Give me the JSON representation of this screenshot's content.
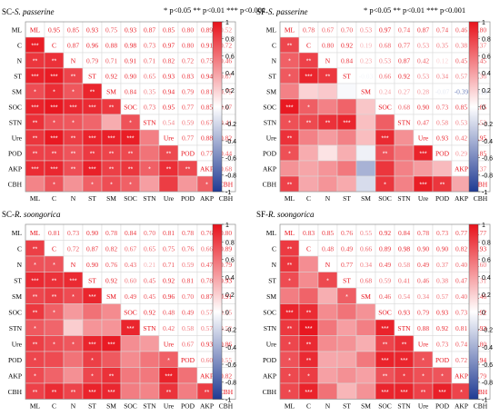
{
  "significance_notes": {
    "left": "* p<0.05  ** p<0.01  *** p<0.001",
    "right": "* p<0.05  ** p<0.01  *** p<0.001"
  },
  "colors": {
    "positive": "#e8121b",
    "negative": "#1f3a93",
    "zero": "#ffffff",
    "grid": "#d8d8d8"
  },
  "chart_data": [
    {
      "type": "heatmap",
      "panel": "SC-S. passerine",
      "title_prefix": "SC-",
      "title_species": "S. passerine",
      "variables": [
        "ML",
        "C",
        "N",
        "ST",
        "SM",
        "SOC",
        "STN",
        "Ure",
        "POD",
        "AKP",
        "CBH"
      ],
      "colorbar_ticks": [
        "1",
        "0.8",
        "0.6",
        "0.4",
        "0.2",
        "0",
        "-0.2",
        "-0.4",
        "-0.6",
        "-0.8",
        "-1"
      ],
      "clim": [
        -1,
        1
      ],
      "upper_values": [
        [
          null,
          0.95,
          0.85,
          0.93,
          0.75,
          0.93,
          0.87,
          0.85,
          0.8,
          0.89,
          0.52
        ],
        [
          null,
          null,
          0.87,
          0.96,
          0.88,
          0.98,
          0.73,
          0.97,
          0.8,
          0.91,
          0.72
        ],
        [
          null,
          null,
          null,
          0.79,
          0.71,
          0.91,
          0.71,
          0.82,
          0.72,
          0.75,
          0.46
        ],
        [
          null,
          null,
          null,
          null,
          0.92,
          0.9,
          0.65,
          0.93,
          0.83,
          0.94,
          0.67
        ],
        [
          null,
          null,
          null,
          null,
          null,
          0.84,
          0.35,
          0.94,
          0.79,
          0.81,
          0.75
        ],
        [
          null,
          null,
          null,
          null,
          null,
          null,
          0.73,
          0.95,
          0.77,
          0.85,
          0.67
        ],
        [
          null,
          null,
          null,
          null,
          null,
          null,
          null,
          0.54,
          0.59,
          0.67,
          0.41
        ],
        [
          null,
          null,
          null,
          null,
          null,
          null,
          null,
          null,
          0.77,
          0.88,
          0.82
        ],
        [
          null,
          null,
          null,
          null,
          null,
          null,
          null,
          null,
          null,
          0.77,
          0.44
        ],
        [
          null,
          null,
          null,
          null,
          null,
          null,
          null,
          null,
          null,
          null,
          0.68
        ],
        [
          null,
          null,
          null,
          null,
          null,
          null,
          null,
          null,
          null,
          null,
          null
        ]
      ],
      "lower_sig": [
        [
          "",
          "",
          "",
          "",
          "",
          "",
          "",
          "",
          "",
          "",
          ""
        ],
        [
          "***",
          "",
          "",
          "",
          "",
          "",
          "",
          "",
          "",
          "",
          ""
        ],
        [
          "**",
          "**",
          "",
          "",
          "",
          "",
          "",
          "",
          "",
          "",
          ""
        ],
        [
          "***",
          "***",
          "**",
          "",
          "",
          "",
          "",
          "",
          "",
          "",
          ""
        ],
        [
          "*",
          "*",
          "*",
          "**",
          "",
          "",
          "",
          "",
          "",
          "",
          ""
        ],
        [
          "***",
          "***",
          "***",
          "***",
          "**",
          "",
          "",
          "",
          "",
          "",
          ""
        ],
        [
          "**",
          "*",
          "*",
          "",
          "",
          "*",
          "",
          "",
          "",
          "",
          ""
        ],
        [
          "**",
          "***",
          "**",
          "***",
          "***",
          "***",
          "",
          "",
          "",
          "",
          ""
        ],
        [
          "**",
          "**",
          "**",
          "**",
          "**",
          "**",
          "",
          "**",
          "",
          "",
          ""
        ],
        [
          "***",
          "***",
          "**",
          "***",
          "**",
          "**",
          "*",
          "**",
          "**",
          "",
          ""
        ],
        [
          "",
          "*",
          "",
          "*",
          "*",
          "*",
          "",
          "",
          "",
          "*",
          ""
        ]
      ]
    },
    {
      "type": "heatmap",
      "panel": "SF-S. passerine",
      "title_prefix": "SF-",
      "title_species": "S. passerine",
      "variables": [
        "ML",
        "C",
        "N",
        "ST",
        "SM",
        "SOC",
        "STN",
        "Ure",
        "POD",
        "AKP",
        "CBH"
      ],
      "colorbar_ticks": [
        "1",
        "0.8",
        "0.6",
        "0.4",
        "0.2",
        "0",
        "-0.2",
        "-0.4",
        "-0.6",
        "-0.8",
        "-1"
      ],
      "clim": [
        -1,
        1
      ],
      "upper_values": [
        [
          null,
          0.78,
          0.67,
          0.7,
          0.53,
          0.97,
          0.74,
          0.87,
          0.74,
          0.46,
          0.8
        ],
        [
          null,
          null,
          0.8,
          0.92,
          0.19,
          0.68,
          0.77,
          0.53,
          0.35,
          0.38,
          0.37
        ],
        [
          null,
          null,
          null,
          0.84,
          0.23,
          0.53,
          0.87,
          0.42,
          0.12,
          0.45,
          0.45
        ],
        [
          null,
          null,
          null,
          null,
          -0.03,
          0.66,
          0.92,
          0.53,
          0.34,
          0.57,
          0.36
        ],
        [
          null,
          null,
          null,
          null,
          null,
          0.24,
          0.27,
          0.28,
          -0.07,
          -0.39,
          -0.18
        ],
        [
          null,
          null,
          null,
          null,
          null,
          null,
          0.68,
          0.9,
          0.73,
          0.85,
          0.85
        ],
        [
          null,
          null,
          null,
          null,
          null,
          null,
          null,
          0.47,
          0.58,
          0.53,
          0.53
        ],
        [
          null,
          null,
          null,
          null,
          null,
          null,
          null,
          null,
          0.93,
          0.42,
          0.95
        ],
        [
          null,
          null,
          null,
          null,
          null,
          null,
          null,
          null,
          null,
          0.29,
          0.85
        ],
        [
          null,
          null,
          null,
          null,
          null,
          null,
          null,
          null,
          null,
          null,
          0.37
        ],
        [
          null,
          null,
          null,
          null,
          null,
          null,
          null,
          null,
          null,
          null,
          null
        ]
      ],
      "lower_sig": [
        [
          "",
          "",
          "",
          "",
          "",
          "",
          "",
          "",
          "",
          "",
          ""
        ],
        [
          "**",
          "",
          "",
          "",
          "",
          "",
          "",
          "",
          "",
          "",
          ""
        ],
        [
          "*",
          "**",
          "",
          "",
          "",
          "",
          "",
          "",
          "",
          "",
          ""
        ],
        [
          "*",
          "***",
          "**",
          "",
          "",
          "",
          "",
          "",
          "",
          "",
          ""
        ],
        [
          "",
          "",
          "",
          "",
          "",
          "",
          "",
          "",
          "",
          "",
          ""
        ],
        [
          "***",
          "*",
          "",
          "",
          "",
          "",
          "",
          "",
          "",
          "",
          ""
        ],
        [
          "*",
          "**",
          "**",
          "***",
          "",
          "",
          "",
          "",
          "",
          "",
          ""
        ],
        [
          "**",
          "",
          "",
          "",
          "",
          "***",
          "",
          "",
          "",
          "",
          ""
        ],
        [
          "*",
          "",
          "",
          "",
          "",
          "**",
          "",
          "***",
          "",
          "",
          ""
        ],
        [
          "",
          "",
          "",
          "",
          "",
          "",
          "",
          "",
          "",
          "",
          ""
        ],
        [
          "**",
          "",
          "",
          "",
          "",
          "*",
          "",
          "***",
          "**",
          "",
          ""
        ]
      ]
    },
    {
      "type": "heatmap",
      "panel": "SC-R. soongorica",
      "title_prefix": "SC-",
      "title_species": "R. soongorica",
      "variables": [
        "ML",
        "C",
        "N",
        "ST",
        "SM",
        "SOC",
        "STN",
        "Ure",
        "POD",
        "AKP",
        "CBH"
      ],
      "colorbar_ticks": [
        "1",
        "0.8",
        "0.6",
        "0.4",
        "0.2",
        "0",
        "-0.2",
        "-0.4",
        "-0.6",
        "-0.8",
        "-1"
      ],
      "clim": [
        -1,
        1
      ],
      "upper_values": [
        [
          null,
          0.81,
          0.73,
          0.9,
          0.78,
          0.84,
          0.7,
          0.81,
          0.78,
          0.76,
          0.8
        ],
        [
          null,
          null,
          0.72,
          0.87,
          0.82,
          0.67,
          0.65,
          0.75,
          0.76,
          0.66,
          0.89
        ],
        [
          null,
          null,
          null,
          0.9,
          0.76,
          0.43,
          0.21,
          0.71,
          0.59,
          0.47,
          0.79
        ],
        [
          null,
          null,
          null,
          null,
          0.92,
          0.6,
          0.45,
          0.92,
          0.81,
          0.78,
          0.93
        ],
        [
          null,
          null,
          null,
          null,
          null,
          0.49,
          0.45,
          0.96,
          0.7,
          0.87,
          0.91
        ],
        [
          null,
          null,
          null,
          null,
          null,
          null,
          0.92,
          0.48,
          0.49,
          0.57,
          0.55
        ],
        [
          null,
          null,
          null,
          null,
          null,
          null,
          null,
          0.42,
          0.58,
          0.57,
          0.52
        ],
        [
          null,
          null,
          null,
          null,
          null,
          null,
          null,
          null,
          0.67,
          0.93,
          0.86
        ],
        [
          null,
          null,
          null,
          null,
          null,
          null,
          null,
          null,
          null,
          0.6,
          0.55
        ],
        [
          null,
          null,
          null,
          null,
          null,
          null,
          null,
          null,
          null,
          null,
          0.82
        ],
        [
          null,
          null,
          null,
          null,
          null,
          null,
          null,
          null,
          null,
          null,
          null
        ]
      ],
      "lower_sig": [
        [
          "",
          "",
          "",
          "",
          "",
          "",
          "",
          "",
          "",
          "",
          ""
        ],
        [
          "**",
          "",
          "",
          "",
          "",
          "",
          "",
          "",
          "",
          "",
          ""
        ],
        [
          "*",
          "*",
          "",
          "",
          "",
          "",
          "",
          "",
          "",
          "",
          ""
        ],
        [
          "***",
          "**",
          "***",
          "",
          "",
          "",
          "",
          "",
          "",
          "",
          ""
        ],
        [
          "**",
          "**",
          "*",
          "***",
          "",
          "",
          "",
          "",
          "",
          "",
          ""
        ],
        [
          "**",
          "*",
          "",
          "",
          "",
          "",
          "",
          "",
          "",
          "",
          ""
        ],
        [
          "*",
          "",
          "",
          "",
          "",
          "***",
          "",
          "",
          "",
          "",
          ""
        ],
        [
          "**",
          "*",
          "*",
          "***",
          "***",
          "",
          "",
          "",
          "",
          "",
          ""
        ],
        [
          "*",
          "",
          "",
          "*",
          "",
          "",
          "",
          "*",
          "",
          "",
          ""
        ],
        [
          "*",
          "",
          "",
          "*",
          "**",
          "",
          "",
          "***",
          "",
          "",
          ""
        ],
        [
          "**",
          "**",
          "**",
          "***",
          "***",
          "",
          "",
          "**",
          "",
          "**",
          ""
        ]
      ]
    },
    {
      "type": "heatmap",
      "panel": "SF-R. soongorica",
      "title_prefix": "SF-",
      "title_species": "R. soongorica",
      "variables": [
        "ML",
        "C",
        "N",
        "ST",
        "SM",
        "SOC",
        "STN",
        "Ure",
        "POD",
        "AKP",
        "CBH"
      ],
      "colorbar_ticks": [
        "1",
        "0.8",
        "0.6",
        "0.4",
        "0.2",
        "0",
        "-0.2",
        "-0.4",
        "-0.6",
        "-0.8",
        "-1"
      ],
      "clim": [
        -1,
        1
      ],
      "upper_values": [
        [
          null,
          0.83,
          0.85,
          0.76,
          0.55,
          0.92,
          0.84,
          0.78,
          0.73,
          0.77,
          0.77
        ],
        [
          null,
          null,
          0.48,
          0.49,
          0.66,
          0.89,
          0.98,
          0.9,
          0.9,
          0.82,
          0.93
        ],
        [
          null,
          null,
          null,
          0.77,
          0.34,
          0.49,
          0.58,
          0.49,
          0.37,
          0.4,
          0.6
        ],
        [
          null,
          null,
          null,
          null,
          0.68,
          0.59,
          0.41,
          0.46,
          0.38,
          0.47,
          0.31
        ],
        [
          null,
          null,
          null,
          null,
          null,
          0.46,
          0.54,
          0.34,
          0.57,
          0.4,
          0.46
        ],
        [
          null,
          null,
          null,
          null,
          null,
          null,
          0.93,
          0.79,
          0.93,
          0.73,
          0.92
        ],
        [
          null,
          null,
          null,
          null,
          null,
          null,
          null,
          0.88,
          0.92,
          0.81,
          0.93
        ],
        [
          null,
          null,
          null,
          null,
          null,
          null,
          null,
          null,
          0.73,
          0.74,
          0.8
        ],
        [
          null,
          null,
          null,
          null,
          null,
          null,
          null,
          null,
          null,
          0.72,
          0.94
        ],
        [
          null,
          null,
          null,
          null,
          null,
          null,
          null,
          null,
          null,
          null,
          0.79
        ],
        [
          null,
          null,
          null,
          null,
          null,
          null,
          null,
          null,
          null,
          null,
          null
        ]
      ],
      "lower_sig": [
        [
          "",
          "",
          "",
          "",
          "",
          "",
          "",
          "",
          "",
          "",
          ""
        ],
        [
          "**",
          "",
          "",
          "",
          "",
          "",
          "",
          "",
          "",
          "",
          ""
        ],
        [
          "**",
          "",
          "",
          "",
          "",
          "",
          "",
          "",
          "",
          "",
          ""
        ],
        [
          "*",
          "",
          "*",
          "",
          "",
          "",
          "",
          "",
          "",
          "",
          ""
        ],
        [
          "",
          "",
          "",
          "*",
          "",
          "",
          "",
          "",
          "",
          "",
          ""
        ],
        [
          "***",
          "**",
          "",
          "",
          "",
          "",
          "",
          "",
          "",
          "",
          ""
        ],
        [
          "**",
          "***",
          "",
          "",
          "",
          "***",
          "",
          "",
          "",
          "",
          ""
        ],
        [
          "*",
          "**",
          "",
          "",
          "",
          "**",
          "**",
          "",
          "",
          "",
          ""
        ],
        [
          "*",
          "**",
          "",
          "",
          "",
          "***",
          "***",
          "*",
          "",
          "",
          ""
        ],
        [
          "*",
          "*",
          "",
          "",
          "",
          "**",
          "*",
          "*",
          "*",
          "",
          ""
        ],
        [
          "*",
          "***",
          "",
          "",
          "",
          "***",
          "***",
          "**",
          "***",
          "*",
          ""
        ]
      ]
    }
  ]
}
